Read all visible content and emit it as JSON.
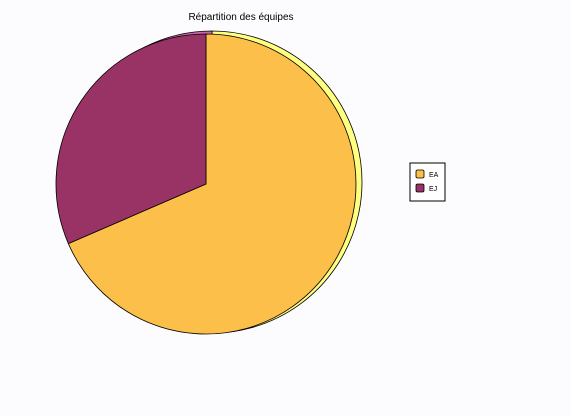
{
  "chart_data": {
    "type": "pie",
    "title": "Répartition des équipes",
    "categories": [
      "EA",
      "EJ"
    ],
    "values": [
      68.5,
      31.5
    ],
    "colors": [
      "#fcbf49",
      "#993366"
    ],
    "shadow_colors": [
      "#ffff80",
      "#cc66aa"
    ],
    "legend": "right"
  }
}
